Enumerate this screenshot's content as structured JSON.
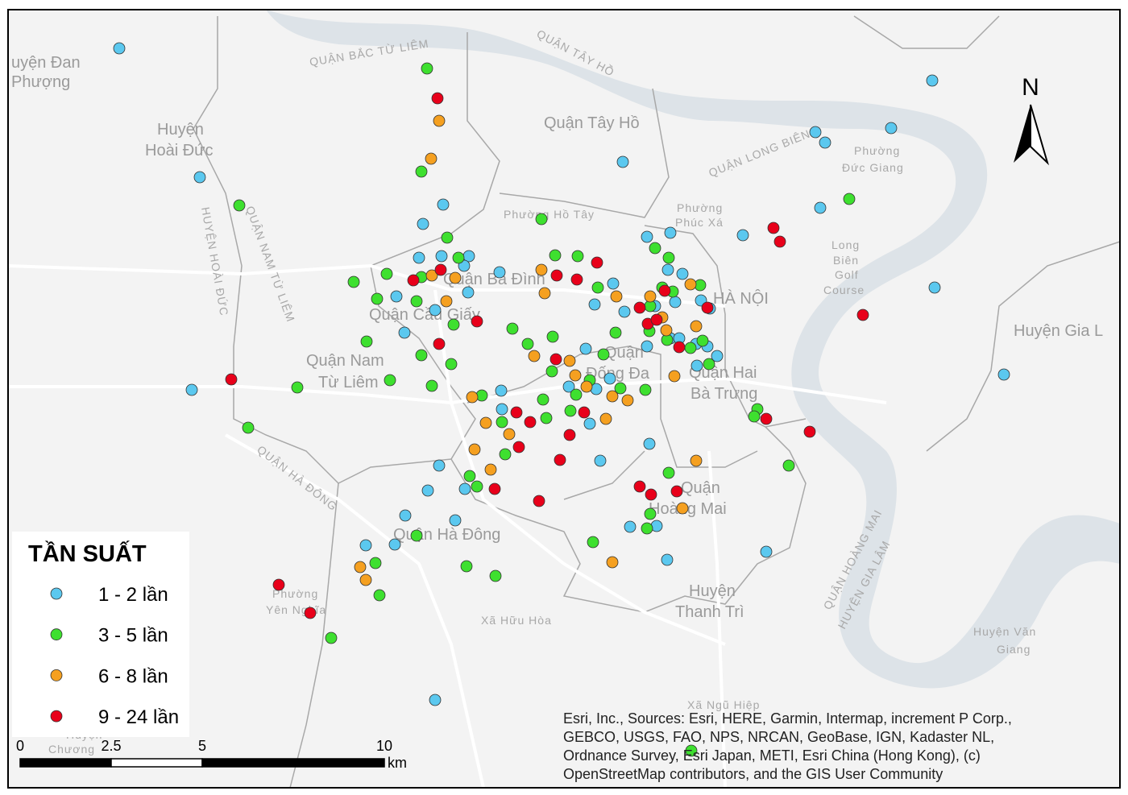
{
  "map": {
    "place_labels": [
      "uyện Đan",
      "Phượng",
      "Huyện",
      "Hoài Đức",
      "QUẬN BẮC TỪ LIÊM",
      "QUẬN TÂY HỒ",
      "Quận Tây Hồ",
      "QUẬN LONG BIÊN",
      "Phường",
      "Đức Giang",
      "Long",
      "Biên",
      "Golf",
      "Course",
      "Huyện Gia L",
      "Quận Ba Đình",
      "Quận Cầu Giấy",
      "Quận Nam",
      "Từ Liêm",
      "HÀ NỘI",
      "Quận",
      "Đống Đa",
      "Quận Hai",
      "Bà Trưng",
      "Quận",
      "Hoàng Mai",
      "Quận Hà Đông",
      "Huyện",
      "Thanh Trì",
      "Xã Hữu Hòa",
      "Phường",
      "Yên Nghĩa",
      "Huyện Văn",
      "Giang",
      "Xã Ngũ Hiệp",
      "Huyện",
      "Chương",
      "HUYỆN HOÀI ĐỨC",
      "QUẬN NAM TỪ LIÊM",
      "QUẬN HÀ ĐÔNG",
      "QUẬN HOÀNG MAI",
      "HUYỆN GIA LÂM",
      "Phường Hồ Tây",
      "Phường",
      "Phúc Xá"
    ],
    "north": "N",
    "legend": {
      "title": "TẦN SUẤT",
      "items": [
        {
          "label": "1 - 2 lần",
          "color": "#5bc8ef"
        },
        {
          "label": "3 - 5 lần",
          "color": "#3ee02f"
        },
        {
          "label": "6 - 8 lần",
          "color": "#f5a020"
        },
        {
          "label": "9 - 24 lần",
          "color": "#e8001a"
        }
      ]
    },
    "scale": {
      "ticks": [
        0,
        2.5,
        5,
        10
      ],
      "unit": "km"
    },
    "attribution": [
      "Esri, Inc., Sources: Esri, HERE, Garmin, Intermap, increment P Corp.,",
      "GEBCO, USGS, FAO, NPS, NRCAN, GeoBase, IGN, Kadaster NL,",
      "Ordnance Survey, Esri Japan, METI, Esri China (Hong Kong), (c)",
      "OpenStreetMap contributors, and the GIS User Community"
    ]
  }
}
